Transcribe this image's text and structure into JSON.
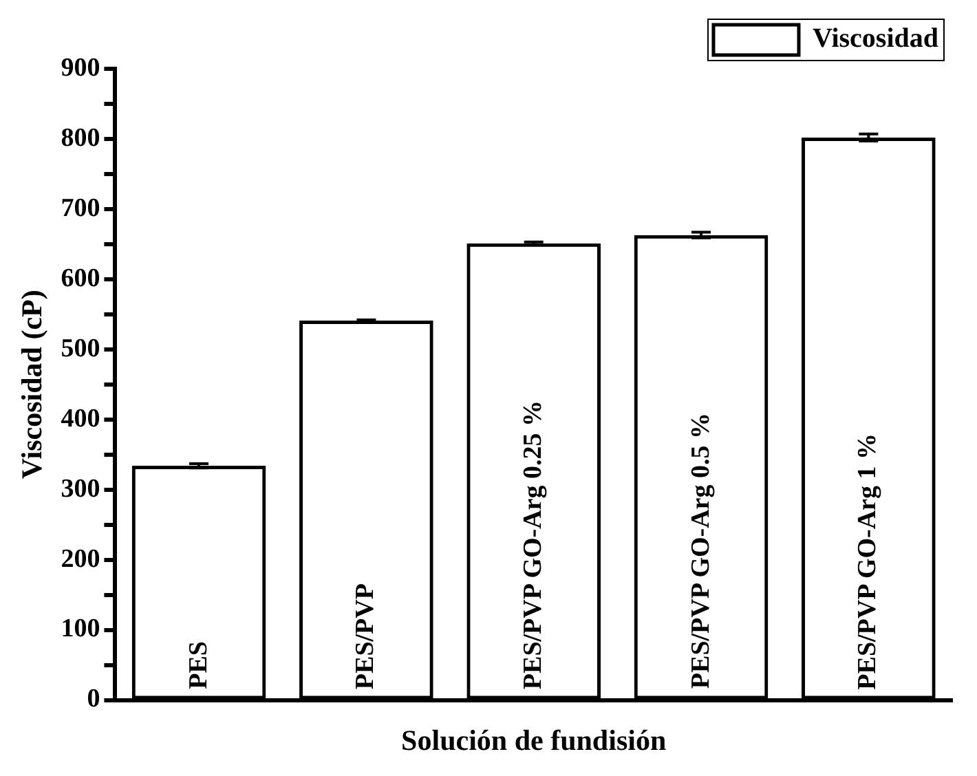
{
  "chart_data": {
    "type": "bar",
    "xlabel": "Solución de fundisión",
    "ylabel": "Viscosidad (cP)",
    "categories": [
      "PES",
      "PES/PVP",
      "PES/PVP GO-Arg 0.25 %",
      "PES/PVP GO-Arg 0.5 %",
      "PES/PVP GO-Arg 1 %"
    ],
    "series": [
      {
        "name": "Viscosidad",
        "color": "#000000",
        "values": [
          334,
          541,
          651,
          663,
          802
        ],
        "errors": [
          3,
          1,
          2,
          4,
          5
        ]
      }
    ],
    "ylim": [
      0,
      900
    ],
    "yticks": [
      0,
      {
        "value": 50,
        "label": null
      },
      100,
      {
        "value": 150,
        "label": null
      },
      200,
      {
        "value": 250,
        "label": null
      },
      300,
      {
        "value": 350,
        "label": null
      },
      400,
      {
        "value": 450,
        "label": null
      },
      500,
      {
        "value": 550,
        "label": null
      },
      600,
      {
        "value": 650,
        "label": null
      },
      700,
      {
        "value": 750,
        "label": null
      },
      800,
      {
        "value": 850,
        "label": null
      },
      900
    ],
    "grid": false,
    "legend": "top right"
  }
}
